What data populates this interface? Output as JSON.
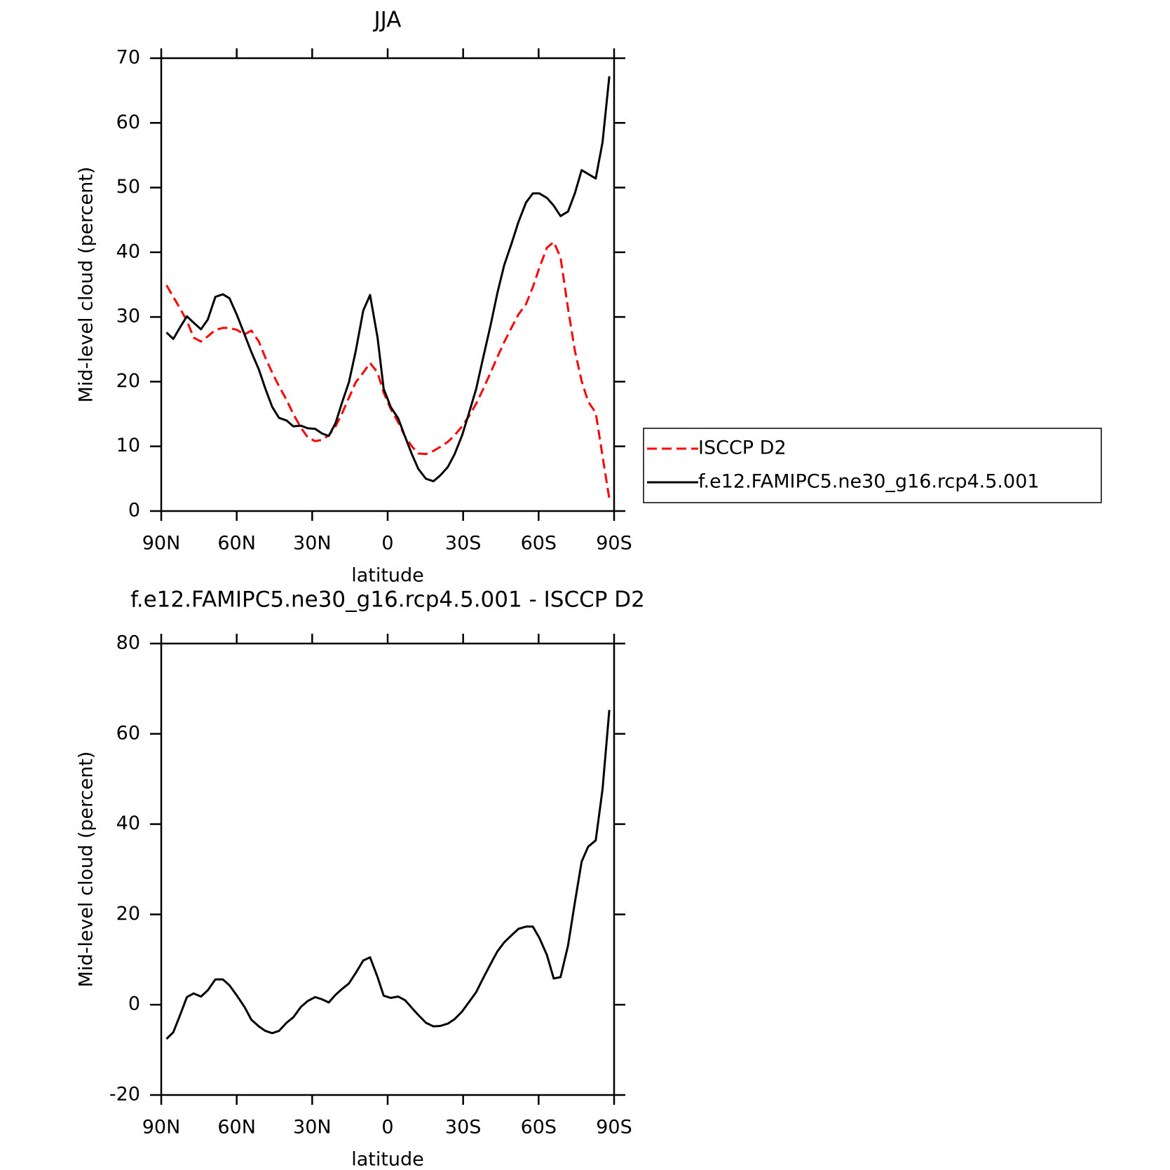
{
  "chart_data": [
    {
      "type": "line",
      "title": "JJA",
      "xlabel": "latitude",
      "ylabel": "Mid-level cloud (percent)",
      "x": [
        87.9,
        85.2,
        82.5,
        79.8,
        77.1,
        74.2,
        71.5,
        68.5,
        65.5,
        62.9,
        59.9,
        56.9,
        54.2,
        51.2,
        48.6,
        45.9,
        43.2,
        40.2,
        37.5,
        34.5,
        31.8,
        28.8,
        26.1,
        23.4,
        20.7,
        18.1,
        15.4,
        12.7,
        9.7,
        7.0,
        4.0,
        1.6,
        -1.2,
        -4.2,
        -6.9,
        -9.6,
        -12.2,
        -15.2,
        -18.2,
        -20.9,
        -23.9,
        -26.6,
        -29.6,
        -32.2,
        -35.2,
        -37.9,
        -40.9,
        -43.6,
        -46.3,
        -49.3,
        -52.0,
        -55.0,
        -57.7,
        -60.3,
        -63.3,
        -66.0,
        -68.7,
        -71.7,
        -74.4,
        -77.1,
        -79.7,
        -82.7,
        -85.4,
        -88.1
      ],
      "series": [
        {
          "name": "ISCCP D2",
          "color": "#ff0000",
          "dash": "dashed",
          "values": [
            34.9,
            33.1,
            31.3,
            29.4,
            26.8,
            26.2,
            27.0,
            28.0,
            28.3,
            28.3,
            28.0,
            27.3,
            27.9,
            26.2,
            23.7,
            21.4,
            19.3,
            17.2,
            15.0,
            12.9,
            11.4,
            10.8,
            11.0,
            11.7,
            13.1,
            15.1,
            17.5,
            19.9,
            21.4,
            22.9,
            21.4,
            18.3,
            15.8,
            13.7,
            11.5,
            10.0,
            8.9,
            8.8,
            9.3,
            9.9,
            10.7,
            11.7,
            13.1,
            14.6,
            16.6,
            18.8,
            21.4,
            23.8,
            26.1,
            28.4,
            30.4,
            32.0,
            34.6,
            37.6,
            40.7,
            41.6,
            39.2,
            31.3,
            24.8,
            20.1,
            16.9,
            15.2,
            8.5,
            1.9
          ]
        },
        {
          "name": "f.e12.FAMIPC5.ne30_g16.rcp4.5.001",
          "color": "#000000",
          "dash": "solid",
          "values": [
            27.6,
            26.6,
            28.4,
            30.1,
            29.1,
            28.1,
            29.6,
            33.1,
            33.5,
            32.9,
            30.3,
            27.3,
            24.6,
            21.9,
            18.9,
            16.1,
            14.4,
            14.0,
            13.1,
            13.2,
            12.8,
            12.7,
            12.0,
            11.6,
            13.6,
            16.8,
            19.9,
            24.7,
            31.0,
            33.4,
            26.8,
            18.9,
            16.1,
            14.3,
            11.5,
            8.8,
            6.5,
            5.0,
            4.6,
            5.5,
            6.8,
            8.8,
            11.7,
            15.0,
            18.9,
            23.6,
            28.7,
            33.7,
            38.0,
            41.4,
            44.7,
            47.7,
            49.1,
            49.1,
            48.4,
            47.2,
            45.6,
            46.3,
            49.1,
            52.7,
            52.1,
            51.4,
            57.0,
            67.2
          ]
        }
      ],
      "xlim": [
        90,
        -90
      ],
      "xticks": [
        {
          "value": 90,
          "label": "90N"
        },
        {
          "value": 60,
          "label": "60N"
        },
        {
          "value": 30,
          "label": "30N"
        },
        0,
        {
          "value": -30,
          "label": "30S"
        },
        {
          "value": -60,
          "label": "60S"
        },
        {
          "value": -90,
          "label": "90S"
        }
      ],
      "ylim": [
        0,
        70
      ],
      "yticks": [
        0,
        10,
        20,
        30,
        40,
        50,
        60,
        70
      ],
      "legend": "right"
    },
    {
      "type": "line",
      "title": "f.e12.FAMIPC5.ne30_g16.rcp4.5.001 - ISCCP D2",
      "xlabel": "latitude",
      "ylabel": "Mid-level cloud (percent)",
      "x": [
        87.9,
        85.2,
        82.5,
        79.8,
        77.1,
        74.2,
        71.5,
        68.5,
        65.5,
        62.9,
        59.9,
        56.9,
        54.2,
        51.2,
        48.6,
        45.9,
        43.2,
        40.2,
        37.5,
        34.5,
        31.8,
        28.8,
        26.1,
        23.4,
        20.7,
        18.1,
        15.4,
        12.7,
        9.7,
        7.0,
        4.0,
        1.6,
        -1.2,
        -4.2,
        -6.9,
        -9.6,
        -12.2,
        -15.2,
        -18.2,
        -20.9,
        -23.9,
        -26.6,
        -29.6,
        -32.2,
        -35.2,
        -37.9,
        -40.9,
        -43.6,
        -46.3,
        -49.3,
        -52.0,
        -55.0,
        -57.7,
        -60.3,
        -63.3,
        -66.0,
        -68.7,
        -71.7,
        -74.4,
        -77.1,
        -79.7,
        -82.7,
        -85.4,
        -88.1
      ],
      "series": [
        {
          "color": "#000000",
          "dash": "solid",
          "values": [
            -7.6,
            -6.1,
            -2.3,
            1.7,
            2.5,
            1.8,
            3.2,
            5.6,
            5.6,
            4.3,
            2.0,
            -0.5,
            -3.3,
            -4.8,
            -5.8,
            -6.3,
            -5.8,
            -4.0,
            -2.8,
            -0.5,
            0.8,
            1.7,
            1.2,
            0.5,
            2.2,
            3.5,
            4.7,
            7.0,
            9.8,
            10.5,
            6.1,
            2.0,
            1.5,
            1.8,
            1.0,
            -0.7,
            -2.3,
            -4.0,
            -4.8,
            -4.7,
            -4.2,
            -3.2,
            -1.5,
            0.5,
            2.8,
            5.8,
            9.0,
            11.8,
            13.8,
            15.4,
            16.8,
            17.3,
            17.3,
            14.8,
            11.0,
            5.8,
            6.1,
            13.1,
            22.6,
            31.7,
            35.0,
            36.4,
            47.7,
            65.3
          ]
        }
      ],
      "xlim": [
        90,
        -90
      ],
      "xticks": [
        {
          "value": 90,
          "label": "90N"
        },
        {
          "value": 60,
          "label": "60N"
        },
        {
          "value": 30,
          "label": "30N"
        },
        0,
        {
          "value": -30,
          "label": "30S"
        },
        {
          "value": -60,
          "label": "60S"
        },
        {
          "value": -90,
          "label": "90S"
        }
      ],
      "ylim": [
        -20,
        80
      ],
      "yticks": [
        -20,
        0,
        20,
        40,
        60,
        80
      ]
    }
  ]
}
